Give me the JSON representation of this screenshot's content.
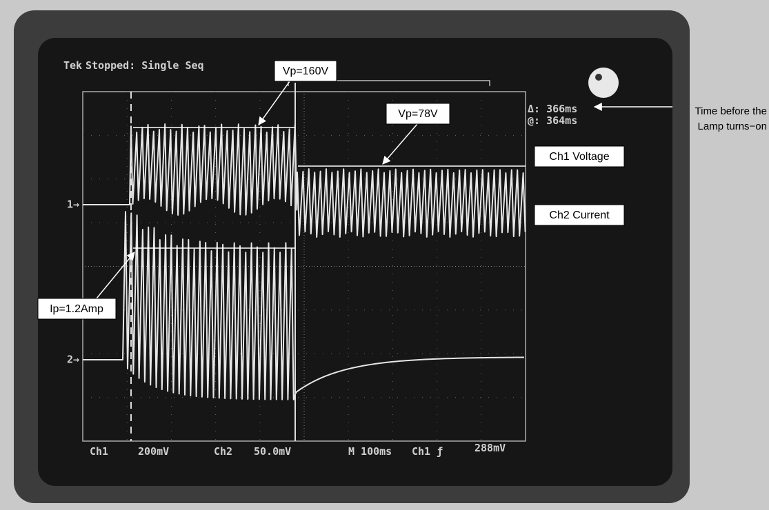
{
  "header": {
    "logo": "Tek",
    "status": "Stopped: Single Seq"
  },
  "readout": {
    "delta": "Δ: 366ms",
    "at": "@: 364ms"
  },
  "annotations": {
    "vp_ch1": "Vp=160V",
    "vp_ch1_after": "Vp=78V",
    "ip_ch2": "Ip=1.2Amp",
    "time_note": [
      "Time before the",
      "Lamp turns−on"
    ],
    "ch1_label": "Ch1 Voltage",
    "ch2_label": "Ch2 Current"
  },
  "channel_markers": [
    "1→",
    "2→"
  ],
  "footer": {
    "ch1": "Ch1",
    "ch1_scale": "200mV",
    "ch2": "Ch2",
    "ch2_scale": "50.0mV",
    "timebase": "M 100ms",
    "trigger": "Ch1 ƒ",
    "trigger_level": "288mV"
  }
}
